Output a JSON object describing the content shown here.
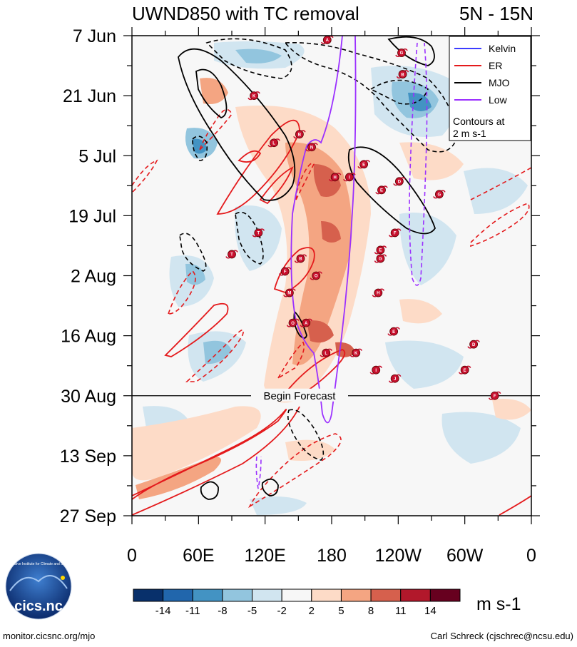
{
  "chart_data": {
    "type": "heatmap",
    "title_left": "UWND850 with TC removal",
    "title_right": "5N - 15N",
    "y_ticks": [
      "7 Jun",
      "21 Jun",
      "5 Jul",
      "19 Jul",
      "2 Aug",
      "16 Aug",
      "30 Aug",
      "13 Sep",
      "27 Sep"
    ],
    "x_ticks": [
      "0",
      "60E",
      "120E",
      "180",
      "120W",
      "60W",
      "0"
    ],
    "x_range_deg_east": [
      0,
      360
    ],
    "y_range_days": [
      0,
      112
    ],
    "forecast_start_day": 84,
    "forecast_label": "Begin Forecast",
    "units": "m s-1",
    "colorbar_ticks": [
      "-14",
      "-11",
      "-8",
      "-5",
      "-2",
      "2",
      "5",
      "8",
      "11",
      "14"
    ],
    "colorbar_colors": [
      "#08306b",
      "#2166ac",
      "#4393c3",
      "#92c5de",
      "#d1e5f0",
      "#f7f7f7",
      "#fddbc7",
      "#f4a582",
      "#d6604d",
      "#b2182b",
      "#67001f"
    ],
    "legend": {
      "items": [
        {
          "name": "Kelvin",
          "color": "#3c3cff"
        },
        {
          "name": "ER",
          "color": "#e41a1c"
        },
        {
          "name": "MJO",
          "color": "#000000"
        },
        {
          "name": "Low",
          "color": "#9b30ff"
        }
      ],
      "note_line1": "Contours at",
      "note_line2": "2 m s-1"
    },
    "tc_markers": [
      {
        "label": "A",
        "lon": 176,
        "day": 1
      },
      {
        "label": "G",
        "lon": 243,
        "day": 4
      },
      {
        "label": "B",
        "lon": 244,
        "day": 9
      },
      {
        "label": "K",
        "lon": 110,
        "day": 14
      },
      {
        "label": "B",
        "lon": 151,
        "day": 23
      },
      {
        "label": "L",
        "lon": 128,
        "day": 25
      },
      {
        "label": "N",
        "lon": 162,
        "day": 26
      },
      {
        "label": "E",
        "lon": 209,
        "day": 30
      },
      {
        "label": "H",
        "lon": 183,
        "day": 33
      },
      {
        "label": "I",
        "lon": 196,
        "day": 33
      },
      {
        "label": "D",
        "lon": 241,
        "day": 34
      },
      {
        "label": "E",
        "lon": 225,
        "day": 36
      },
      {
        "label": "G",
        "lon": 277,
        "day": 37
      },
      {
        "label": "F",
        "lon": 237,
        "day": 46
      },
      {
        "label": "T",
        "lon": 114,
        "day": 46
      },
      {
        "label": "T",
        "lon": 90,
        "day": 51
      },
      {
        "label": "B",
        "lon": 152,
        "day": 52
      },
      {
        "label": "E",
        "lon": 224,
        "day": 50
      },
      {
        "label": "G",
        "lon": 224,
        "day": 52
      },
      {
        "label": "F",
        "lon": 138,
        "day": 55
      },
      {
        "label": "O",
        "lon": 166,
        "day": 56
      },
      {
        "label": "H",
        "lon": 222,
        "day": 60
      },
      {
        "label": "M",
        "lon": 142,
        "day": 60
      },
      {
        "label": "O",
        "lon": 145,
        "day": 67
      },
      {
        "label": "A",
        "lon": 157,
        "day": 67
      },
      {
        "label": "E",
        "lon": 236,
        "day": 69
      },
      {
        "label": "D",
        "lon": 308,
        "day": 72
      },
      {
        "label": "L",
        "lon": 175,
        "day": 74
      },
      {
        "label": "K",
        "lon": 202,
        "day": 74
      },
      {
        "label": "E",
        "lon": 300,
        "day": 78
      },
      {
        "label": "I",
        "lon": 220,
        "day": 78
      },
      {
        "label": "J",
        "lon": 237,
        "day": 80
      },
      {
        "label": "F",
        "lon": 327,
        "day": 84
      }
    ]
  },
  "footer": {
    "left": "monitor.cicsnc.org/mjo",
    "right": "Carl Schreck (cjschrec@ncsu.edu)",
    "logo_text": "cics.nc",
    "logo_ring_text": "Cooperative Institute for Climate and Satellites"
  },
  "colors": {
    "kelvin": "#3c3cff",
    "er": "#e41a1c",
    "mjo": "#000000",
    "low": "#9b30ff"
  }
}
